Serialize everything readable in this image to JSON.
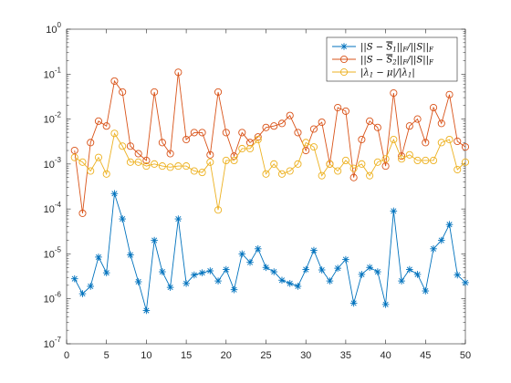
{
  "chart_data": {
    "type": "line",
    "title": "",
    "xlabel": "",
    "ylabel": "",
    "xlim": [
      0,
      50
    ],
    "ylim": [
      1e-07,
      1
    ],
    "yscale": "log",
    "grid": false,
    "legend_position": "top-right",
    "x_ticks": [
      0,
      5,
      10,
      15,
      20,
      25,
      30,
      35,
      40,
      45,
      50
    ],
    "x_tick_labels": [
      "0",
      "5",
      "10",
      "15",
      "20",
      "25",
      "30",
      "35",
      "40",
      "45",
      "50"
    ],
    "y_tick_labels": [
      {
        "value": 1e-07,
        "base": "10",
        "exp": "-7"
      },
      {
        "value": 1e-06,
        "base": "10",
        "exp": "-6"
      },
      {
        "value": 1e-05,
        "base": "10",
        "exp": "-5"
      },
      {
        "value": 0.0001,
        "base": "10",
        "exp": "-4"
      },
      {
        "value": 0.001,
        "base": "10",
        "exp": "-3"
      },
      {
        "value": 0.01,
        "base": "10",
        "exp": "-2"
      },
      {
        "value": 0.1,
        "base": "10",
        "exp": "-1"
      },
      {
        "value": 1,
        "base": "10",
        "exp": "0"
      }
    ],
    "x": [
      1,
      2,
      3,
      4,
      5,
      6,
      7,
      8,
      9,
      10,
      11,
      12,
      13,
      14,
      15,
      16,
      17,
      18,
      19,
      20,
      21,
      22,
      23,
      24,
      25,
      26,
      27,
      28,
      29,
      30,
      31,
      32,
      33,
      34,
      35,
      36,
      37,
      38,
      39,
      40,
      41,
      42,
      43,
      44,
      45,
      46,
      47,
      48,
      49,
      50
    ],
    "series": [
      {
        "name": "||S − Ŝ1||F/||S||F",
        "color": "#0072BD",
        "marker": "asterisk",
        "values": [
          2.8e-06,
          1.3e-06,
          1.9e-06,
          8.5e-06,
          3.8e-06,
          0.00022,
          6e-05,
          9.5e-06,
          2.4e-06,
          5.5e-07,
          2e-05,
          4e-06,
          1.8e-06,
          6e-05,
          2.2e-06,
          3.4e-06,
          3.8e-06,
          4.2e-06,
          2.5e-06,
          4.5e-06,
          1.6e-06,
          1e-05,
          6.5e-06,
          1.3e-05,
          5e-06,
          4e-06,
          2.6e-06,
          2.2e-06,
          1.9e-06,
          4.5e-06,
          1.2e-05,
          4.4e-06,
          2.5e-06,
          4.8e-06,
          7.5e-06,
          8e-07,
          3.5e-06,
          5e-06,
          4e-06,
          7.5e-07,
          9e-05,
          2.5e-06,
          4.5e-06,
          3.5e-06,
          1.5e-06,
          1.3e-05,
          2e-05,
          4.5e-05,
          3.4e-06,
          2.3e-06
        ]
      },
      {
        "name": "||S − Ŝ2||F/||S||F",
        "color": "#D95319",
        "marker": "circle",
        "values": [
          0.002,
          8e-05,
          0.003,
          0.009,
          0.007,
          0.07,
          0.04,
          0.0025,
          0.0017,
          0.0012,
          0.04,
          0.003,
          0.0017,
          0.11,
          0.0035,
          0.005,
          0.005,
          0.0016,
          0.04,
          0.005,
          0.0015,
          0.005,
          0.003,
          0.004,
          0.0065,
          0.007,
          0.008,
          0.012,
          0.005,
          0.002,
          0.006,
          0.0085,
          0.001,
          0.018,
          0.015,
          0.0005,
          0.0035,
          0.009,
          0.0065,
          0.0009,
          0.038,
          0.0015,
          0.007,
          0.01,
          0.003,
          0.018,
          0.008,
          0.035,
          0.0032,
          0.0024
        ]
      },
      {
        "name": "|λ1 − μ|/|λ1|",
        "color": "#EDB120",
        "marker": "circle",
        "values": [
          0.0014,
          0.0011,
          0.0007,
          0.0014,
          0.0006,
          0.0048,
          0.0025,
          0.0011,
          0.0011,
          0.0009,
          0.001,
          0.0009,
          0.00085,
          0.0009,
          0.0009,
          0.0007,
          0.00065,
          0.0011,
          9.5e-05,
          0.0012,
          0.0012,
          0.0022,
          0.0022,
          0.0035,
          0.0006,
          0.001,
          0.0006,
          0.0007,
          0.001,
          0.003,
          0.0024,
          0.00055,
          0.001,
          0.0007,
          0.0012,
          0.0008,
          0.001,
          0.00055,
          0.0011,
          0.0013,
          0.0035,
          0.0013,
          0.0016,
          0.0012,
          0.0012,
          0.0012,
          0.003,
          0.0035,
          0.00075,
          0.0011
        ]
      }
    ]
  },
  "legend": {
    "entries": [
      {
        "pre": "||S − ",
        "hat": "S",
        "sub": "1",
        "post": "||",
        "post_sub": "F",
        "post2": "/||S||",
        "post2_sub": "F"
      },
      {
        "pre": "||S − ",
        "hat": "S",
        "sub": "2",
        "post": "||",
        "post_sub": "F",
        "post2": "/||S||",
        "post2_sub": "F"
      },
      {
        "pre": "|λ",
        "hat": "",
        "sub": "1",
        "post": " − μ|/|λ",
        "post_sub": "1",
        "post2": "|",
        "post2_sub": ""
      }
    ]
  }
}
